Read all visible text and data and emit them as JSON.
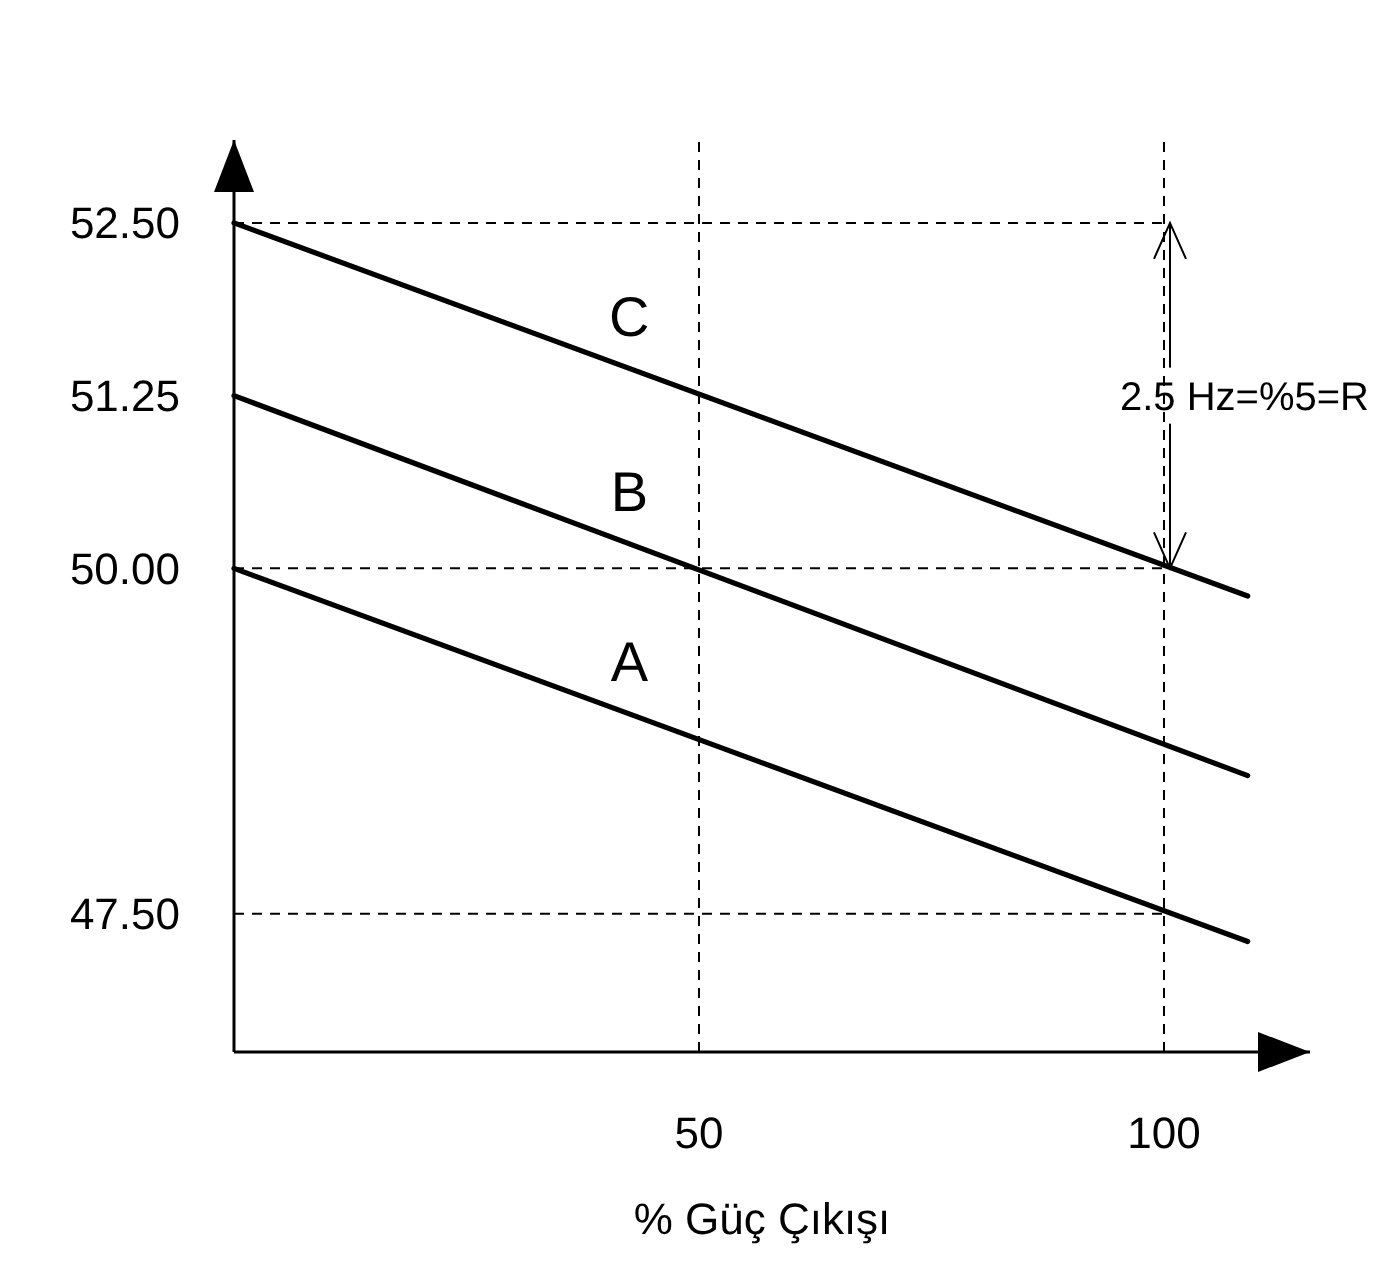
{
  "chart_data": {
    "type": "line",
    "xlabel": "% Güç Çıkışı",
    "xlim": [
      0,
      115.7
    ],
    "ylim": [
      46.5,
      53.1
    ],
    "xticks": [
      50,
      100
    ],
    "yticks": [
      {
        "value": 47.5,
        "label": "47.50"
      },
      {
        "value": 50,
        "label": "50.00"
      },
      51.25,
      {
        "value": 52.5,
        "label": "52.50"
      }
    ],
    "marker": "none",
    "line_style": "solid",
    "x": [
      0,
      109
    ],
    "series": [
      {
        "name": "A",
        "color": "#000000",
        "values": [
          50,
          47.3
        ]
      },
      {
        "name": "B",
        "color": "#000000",
        "values": [
          51.25,
          48.5
        ]
      },
      {
        "name": "C",
        "color": "#000000",
        "values": [
          52.5,
          49.8
        ]
      }
    ],
    "ref_lines": [
      {
        "axis": "y",
        "value": 52.5,
        "color": "#000000",
        "line_style": "dashed"
      },
      {
        "axis": "y",
        "value": 50,
        "color": "#000000",
        "line_style": "dashed"
      },
      {
        "axis": "y",
        "value": 47.5,
        "color": "#000000",
        "line_style": "dashed"
      },
      {
        "axis": "x",
        "value": 50,
        "color": "#000000",
        "line_style": "dashed"
      },
      {
        "axis": "x",
        "value": 100,
        "color": "#000000",
        "line_style": "dashed"
      }
    ],
    "annotations": [
      {
        "text": "2.5 Hz=%5=R",
        "x": 100,
        "y": 50
      }
    ]
  }
}
